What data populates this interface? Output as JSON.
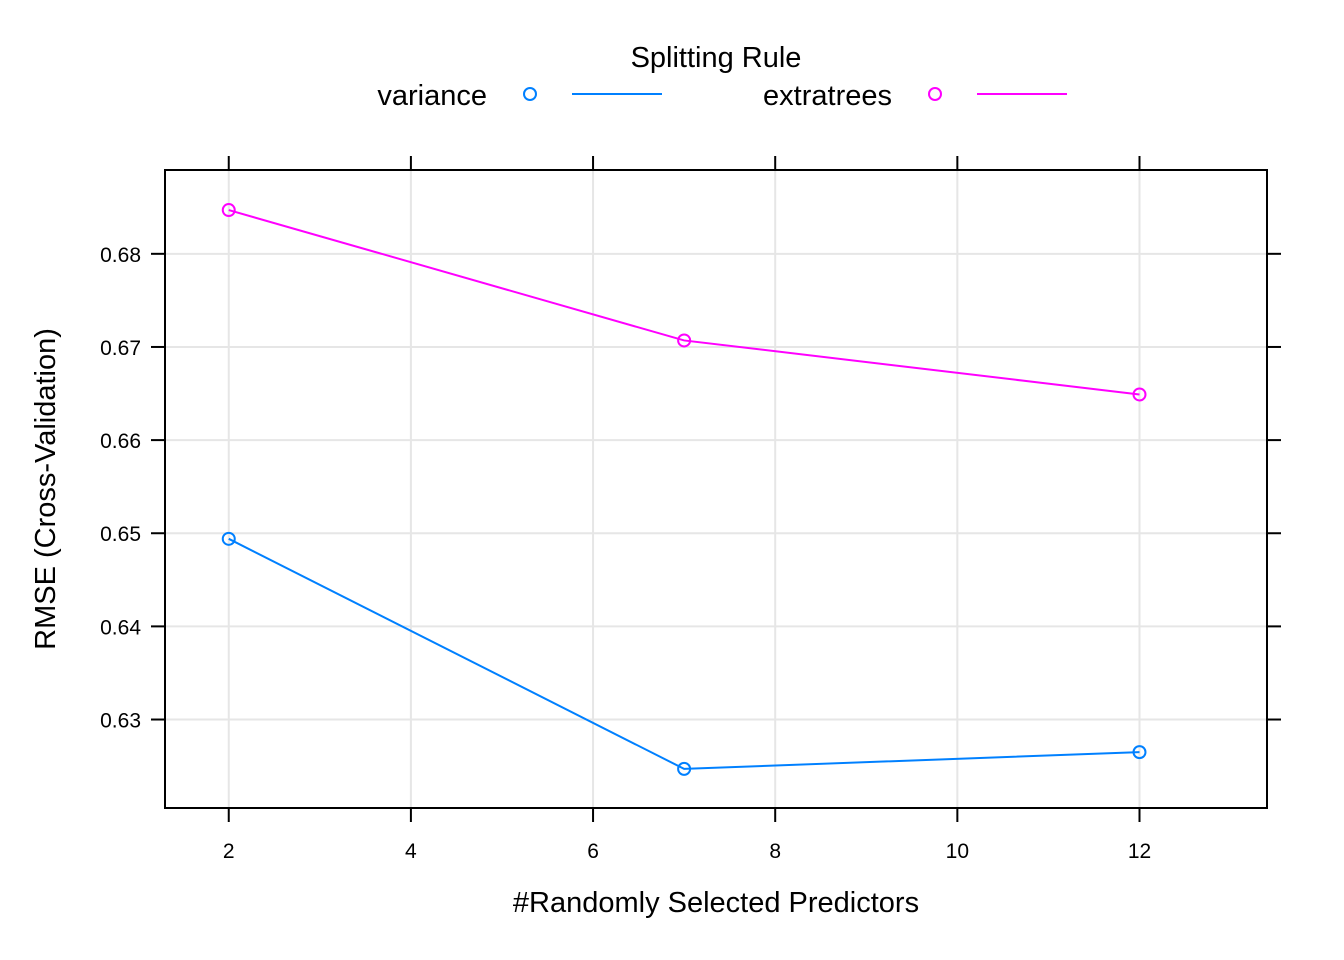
{
  "chart_data": {
    "type": "line",
    "legend": {
      "title": "Splitting Rule",
      "placement": "top"
    },
    "xlabel": "#Randomly Selected Predictors",
    "ylabel": "RMSE (Cross-Validation)",
    "xlim": [
      1.3,
      13.4
    ],
    "ylim": [
      0.6205,
      0.689
    ],
    "x_ticks": [
      2,
      4,
      6,
      8,
      10,
      12
    ],
    "x_tick_labels": [
      "2",
      "4",
      "6",
      "8",
      "10",
      "12"
    ],
    "y_ticks": [
      0.63,
      0.64,
      0.65,
      0.66,
      0.67,
      0.68
    ],
    "y_tick_labels": [
      "0.63",
      "0.64",
      "0.65",
      "0.66",
      "0.67",
      "0.68"
    ],
    "grid": true,
    "x": [
      2,
      7,
      12
    ],
    "series": [
      {
        "name": "variance",
        "color": "#0080ff",
        "values": [
          0.6494,
          0.6247,
          0.6265
        ]
      },
      {
        "name": "extratrees",
        "color": "#ff00ff",
        "values": [
          0.6847,
          0.6707,
          0.6649
        ]
      }
    ]
  }
}
